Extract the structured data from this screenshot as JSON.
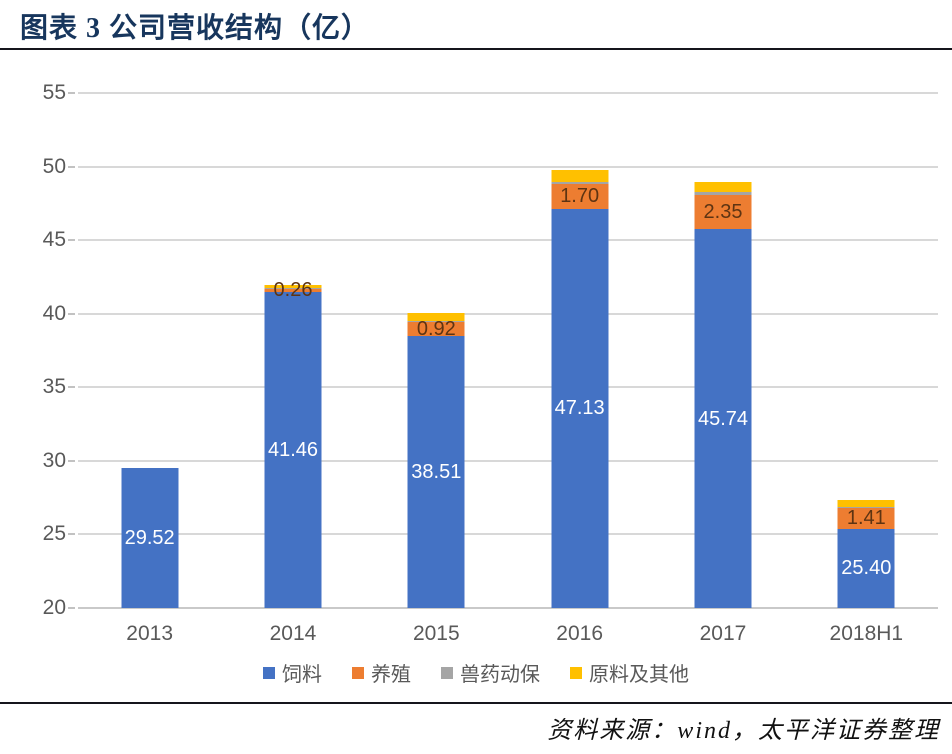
{
  "title": "图表 3 公司营收结构（亿）",
  "source": "资料来源：wind，太平洋证券整理",
  "chart_data": {
    "type": "bar",
    "stacked": true,
    "title": "图表 3 公司营收结构（亿）",
    "categories": [
      "2013",
      "2014",
      "2015",
      "2016",
      "2017",
      "2018H1"
    ],
    "series": [
      {
        "name": "饲料",
        "color": "#4472c4",
        "label_color": "#ffffff",
        "values": [
          29.52,
          41.46,
          38.51,
          47.13,
          45.74,
          25.4
        ],
        "labels": [
          "29.52",
          "41.46",
          "38.51",
          "47.13",
          "45.74",
          "25.40"
        ]
      },
      {
        "name": "养殖",
        "color": "#ed7d31",
        "label_color": "#5e3412",
        "values": [
          0,
          0.26,
          0.92,
          1.7,
          2.35,
          1.41
        ],
        "labels": [
          "",
          "0.26",
          "0.92",
          "1.70",
          "2.35",
          "1.41"
        ]
      },
      {
        "name": "兽药动保",
        "color": "#a5a5a5",
        "label_color": "#404040",
        "values": [
          0,
          0.05,
          0.05,
          0.12,
          0.15,
          0.05
        ],
        "labels": [
          "",
          "",
          "",
          "",
          "",
          ""
        ]
      },
      {
        "name": "原料及其他",
        "color": "#ffc000",
        "label_color": "#404040",
        "values": [
          0,
          0.15,
          0.55,
          0.8,
          0.7,
          0.5
        ],
        "labels": [
          "",
          "",
          "",
          "",
          "",
          ""
        ]
      }
    ],
    "ylim": [
      20,
      55
    ],
    "yticks": [
      20,
      25,
      30,
      35,
      40,
      45,
      50,
      55
    ],
    "xlabel": "",
    "ylabel": "",
    "grid": true,
    "legend_position": "bottom"
  }
}
